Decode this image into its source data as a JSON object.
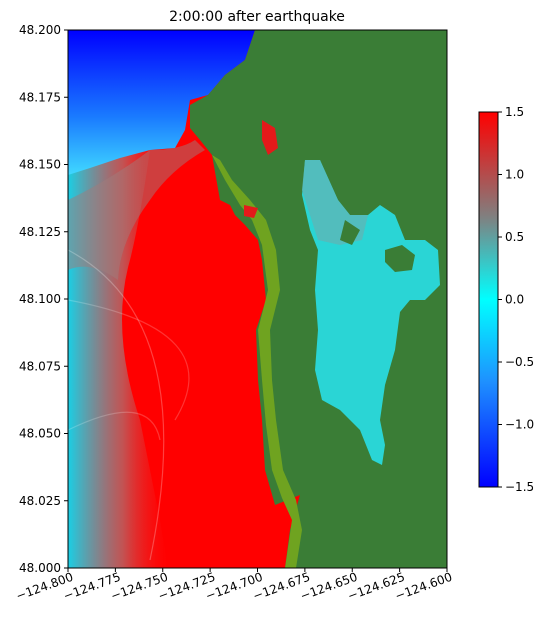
{
  "chart_data": {
    "type": "heatmap",
    "title": "2:00:00 after earthquake",
    "xlabel": "",
    "ylabel": "",
    "xlim": [
      -124.8,
      -124.6
    ],
    "ylim": [
      48.0,
      48.2
    ],
    "x_ticks": [
      "−124.800",
      "−124.775",
      "−124.750",
      "−124.725",
      "−124.700",
      "−124.675",
      "−124.650",
      "−124.625",
      "−124.600"
    ],
    "x_tick_values": [
      -124.8,
      -124.775,
      -124.75,
      -124.725,
      -124.7,
      -124.675,
      -124.65,
      -124.625,
      -124.6
    ],
    "y_ticks": [
      "48.000",
      "48.025",
      "48.050",
      "48.075",
      "48.100",
      "48.125",
      "48.150",
      "48.175",
      "48.200"
    ],
    "y_tick_values": [
      48.0,
      48.025,
      48.05,
      48.075,
      48.1,
      48.125,
      48.15,
      48.175,
      48.2
    ],
    "colorbar": {
      "min": -1.5,
      "max": 1.5,
      "ticks": [
        "−1.5",
        "−1.0",
        "−0.5",
        "0.0",
        "0.5",
        "1.0",
        "1.5"
      ],
      "tick_values": [
        -1.5,
        -1.0,
        -0.5,
        0.0,
        0.5,
        1.0,
        1.5
      ],
      "colors": [
        "#0000ff",
        "#00ffff",
        "#ff0000"
      ]
    },
    "colors": {
      "land": "#3a7d36",
      "shore": "#6fa320"
    },
    "grid": false
  }
}
